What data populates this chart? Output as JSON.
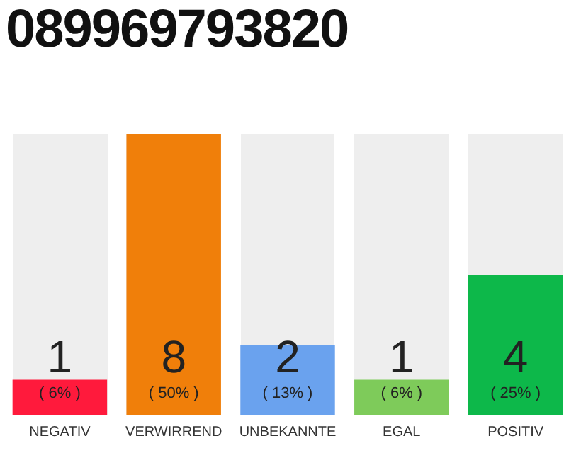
{
  "chart_data": {
    "type": "bar",
    "title": "089969793820",
    "categories": [
      "NEGATIV",
      "VERWIRREND",
      "UNBEKANNTE",
      "EGAL",
      "POSITIV"
    ],
    "values": [
      1,
      8,
      2,
      1,
      4
    ],
    "colors": [
      "#ff1a3c",
      "#f07f0a",
      "#6aa2ee",
      "#7ecb5a",
      "#0db84a"
    ],
    "value_labels": [
      "1\n( 6% )",
      "8\n( 50% )",
      "2\n( 13% )",
      "1\n( 6% )",
      "4\n( 25% )"
    ],
    "ylim": [
      0,
      8
    ],
    "tick_labels": "x",
    "grid": false,
    "legend": false
  }
}
